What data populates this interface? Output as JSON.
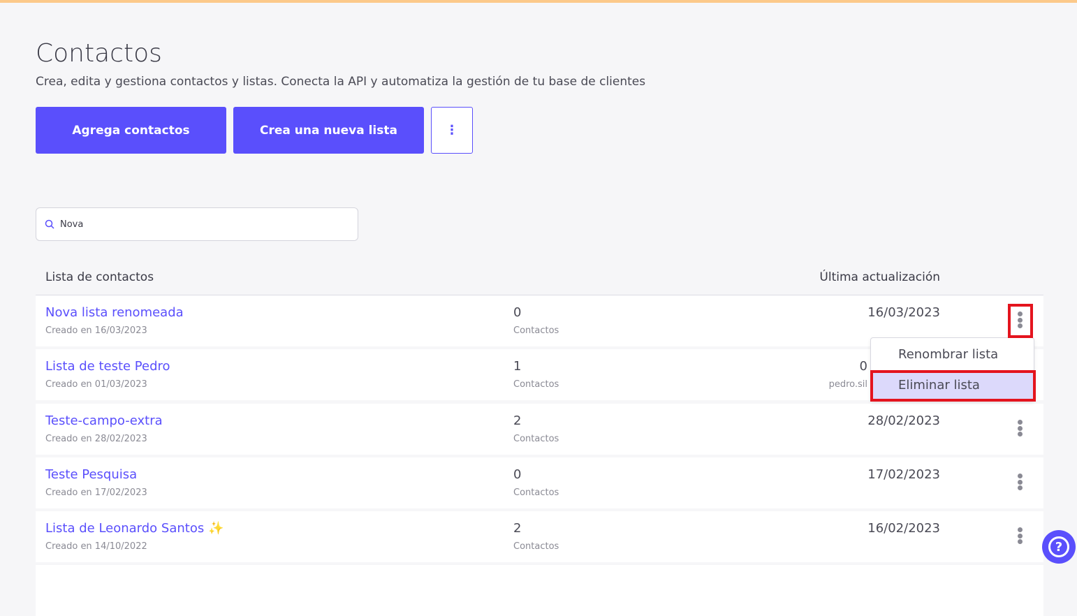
{
  "header": {
    "title": "Contactos",
    "subtitle": "Crea, edita y gestiona contactos y listas. Conecta la API y automatiza la gestión de tu base de clientes"
  },
  "toolbar": {
    "add_contacts": "Agrega contactos",
    "new_list": "Crea una nueva lista",
    "more": "⋮"
  },
  "search": {
    "value": "Nova",
    "icon": "search-icon"
  },
  "table": {
    "col_list": "Lista de contactos",
    "col_updated": "Última actualización",
    "rows": [
      {
        "name": "Nova lista renomeada",
        "created": "Creado en 16/03/2023",
        "count": "0",
        "count_label": "Contactos",
        "date": "16/03/2023",
        "by": ""
      },
      {
        "name": "Lista de teste Pedro",
        "created": "Creado en 01/03/2023",
        "count": "1",
        "count_label": "Contactos",
        "date": "0",
        "by": "pedro.sil"
      },
      {
        "name": "Teste-campo-extra",
        "created": "Creado en 28/02/2023",
        "count": "2",
        "count_label": "Contactos",
        "date": "28/02/2023",
        "by": ""
      },
      {
        "name": "Teste Pesquisa",
        "created": "Creado en 17/02/2023",
        "count": "0",
        "count_label": "Contactos",
        "date": "17/02/2023",
        "by": ""
      },
      {
        "name": "Lista de Leonardo Santos",
        "emoji": "✨",
        "created": "Creado en 14/10/2022",
        "count": "2",
        "count_label": "Contactos",
        "date": "16/02/2023",
        "by": ""
      }
    ]
  },
  "menu": {
    "items": [
      {
        "label": "Renombrar lista"
      },
      {
        "label": "Eliminar lista",
        "highlighted": true
      }
    ]
  },
  "help": {
    "icon": "help-icon",
    "glyph": "?"
  },
  "colors": {
    "accent": "#5a4ffc",
    "highlight": "#e4141e",
    "menu_selected": "#dcd9fb",
    "top_bar": "#fcc98a"
  }
}
